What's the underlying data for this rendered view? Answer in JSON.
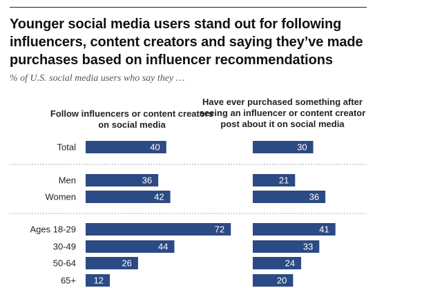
{
  "title": "Younger social media users stand out for following influencers, content creators and saying they’ve made purchases based on influencer recommendations",
  "subtitle": "% of U.S. social media users who say they …",
  "colors": {
    "bar": "#2c4a83",
    "bar_text": "#ffffff"
  },
  "chart_data": {
    "type": "bar",
    "orientation": "horizontal",
    "title": "Younger social media users stand out for following influencers, content creators and saying they’ve made purchases based on influencer recommendations",
    "subtitle": "% of U.S. social media users who say they …",
    "categories": [
      "Total",
      "Men",
      "Women",
      "Ages 18-29",
      "30-49",
      "50-64",
      "65+"
    ],
    "groups": [
      [
        "Total"
      ],
      [
        "Men",
        "Women"
      ],
      [
        "Ages 18-29",
        "30-49",
        "50-64",
        "65+"
      ]
    ],
    "series": [
      {
        "name": "Follow influencers or content creators on social media",
        "values": [
          40,
          36,
          42,
          72,
          44,
          26,
          12
        ]
      },
      {
        "name": "Have ever purchased something after seeing an influencer or content creator post about it on social media",
        "values": [
          30,
          21,
          36,
          41,
          33,
          24,
          20
        ]
      }
    ],
    "xlim": [
      0,
      100
    ],
    "grid": false,
    "legend": "column headers"
  }
}
